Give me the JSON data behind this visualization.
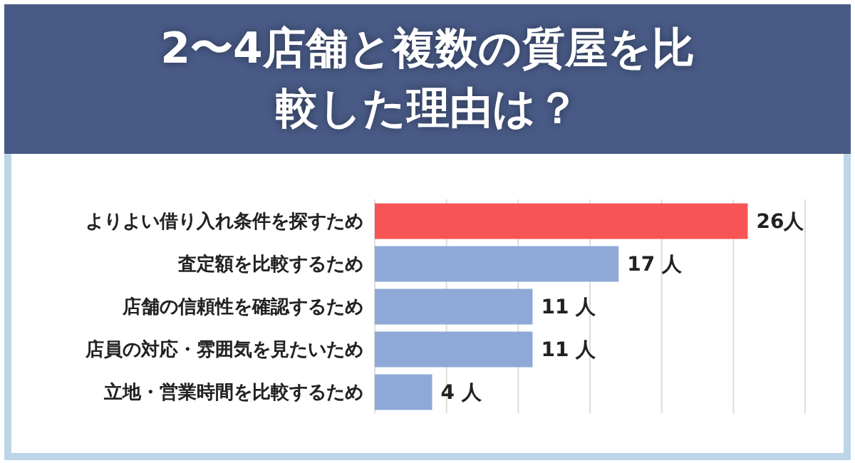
{
  "chart_data": {
    "type": "bar",
    "orientation": "horizontal",
    "title": "2〜4店舗と複数の質屋を比較した理由は？",
    "categories": [
      "よりよい借り入れ条件を探すため",
      "査定額を比較するため",
      "店舗の信頼性を確認するため",
      "店員の対応・雰囲気を見たいため",
      "立地・営業時間を比較するため"
    ],
    "values": [
      26,
      17,
      11,
      11,
      4
    ],
    "colors": [
      "#f75555",
      "#8ea9d8",
      "#8ea9d8",
      "#8ea9d8",
      "#8ea9d8"
    ],
    "value_labels": [
      "26人",
      "17 人",
      "11 人",
      "11 人",
      "4 人"
    ],
    "xlim": [
      0,
      30
    ],
    "tick_labels": "y",
    "grid": "x",
    "legend": false
  }
}
